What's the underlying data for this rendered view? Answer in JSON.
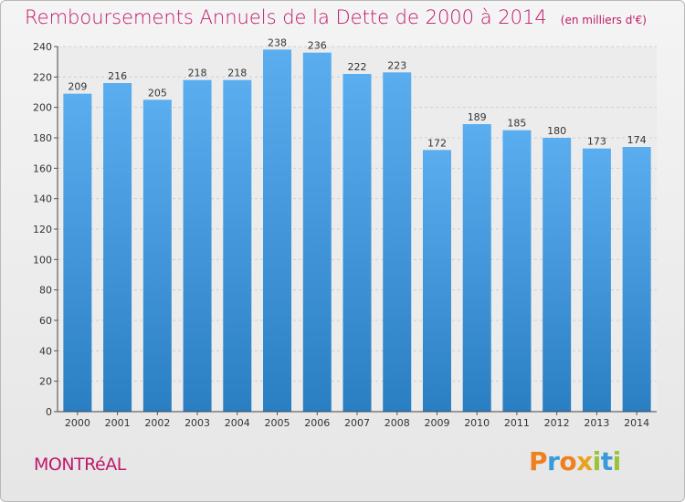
{
  "chart_data": {
    "type": "bar",
    "title": "Remboursements Annuels de la Dette de 2000 à 2014",
    "unit": "(en milliers d'€)",
    "categories": [
      "2000",
      "2001",
      "2002",
      "2003",
      "2004",
      "2005",
      "2006",
      "2007",
      "2008",
      "2009",
      "2010",
      "2011",
      "2012",
      "2013",
      "2014"
    ],
    "values": [
      209,
      216,
      205,
      218,
      218,
      238,
      236,
      222,
      223,
      172,
      189,
      185,
      180,
      173,
      174
    ],
    "ylim": [
      0,
      240
    ],
    "yticks": [
      0,
      20,
      40,
      60,
      80,
      100,
      120,
      140,
      160,
      180,
      200,
      220,
      240
    ],
    "grid": true,
    "bar_color": "#3a8fd6"
  },
  "commune": "MONTRéAL",
  "logo": {
    "letters": [
      "P",
      "r",
      "o",
      "x",
      "i",
      "t",
      "i"
    ],
    "colors": [
      "#f07f1f",
      "#3a9ad9",
      "#f07f1f",
      "#e8a31d",
      "#9ac33a",
      "#3a9ad9",
      "#9ac33a"
    ]
  }
}
